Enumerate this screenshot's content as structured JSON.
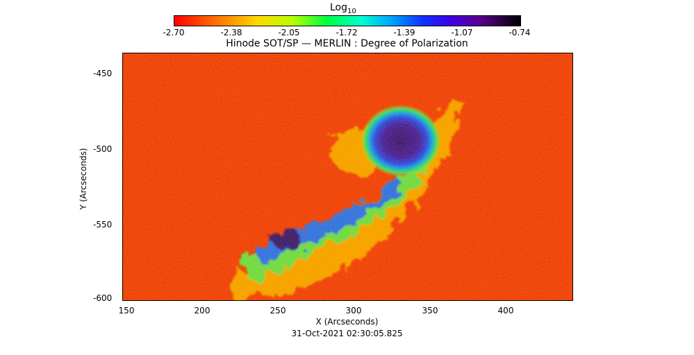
{
  "colorbar": {
    "title_base": "Log",
    "title_sub": "10",
    "ticks": [
      "-2.70",
      "-2.38",
      "-2.05",
      "-1.72",
      "-1.39",
      "-1.07",
      "-0.74"
    ]
  },
  "title": "Hinode SOT/SP — MERLIN : Degree of Polarization",
  "y_axis": {
    "label": "Y (Arcseconds)",
    "ticks": [
      "-450",
      "-500",
      "-550",
      "-600"
    ]
  },
  "x_axis": {
    "label": "X (Arcseconds)",
    "ticks": [
      "150",
      "200",
      "250",
      "300",
      "350",
      "400"
    ]
  },
  "timestamp": "31-Oct-2021 02:30:05.825",
  "colors": {
    "low": "#ef3a12",
    "mid": "#f9a800",
    "plage_green": "#40e040",
    "plage_blue": "#1a6cff",
    "umbra": "#3a0aa0"
  },
  "map_data": {
    "scale": "log10",
    "range": [
      -2.7,
      -0.74
    ],
    "x_range_arcsec": [
      148,
      444
    ],
    "y_range_arcsec": [
      -602,
      -438
    ],
    "features": [
      {
        "type": "sunspot",
        "x": 330,
        "y": -496
      },
      {
        "type": "pore",
        "x": 258,
        "y": -562
      }
    ]
  }
}
